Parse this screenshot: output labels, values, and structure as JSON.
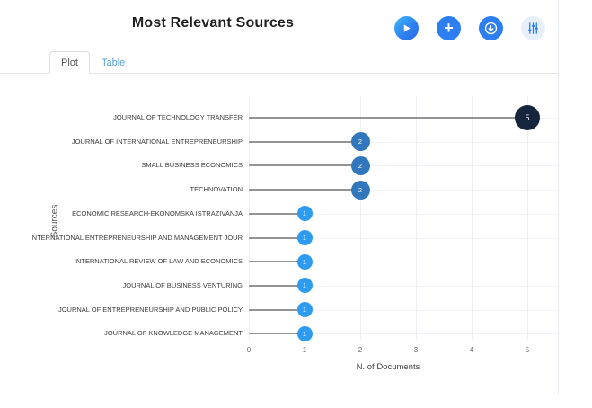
{
  "header": {
    "title": "Most Relevant Sources",
    "icons": {
      "run": "play-icon",
      "add": "plus-icon",
      "export": "download-icon",
      "filters": "sliders-icon"
    }
  },
  "colors": {
    "accent_blue": "#2d7ef0",
    "light_button_bg": "#e7effc",
    "tab_link_blue": "#57a0dc",
    "stem_gray": "#949494"
  },
  "tabs": [
    {
      "label": "Plot",
      "active": true
    },
    {
      "label": "Table",
      "active": false
    }
  ],
  "chart_data": {
    "type": "bar",
    "style": "lollipop",
    "orientation": "horizontal",
    "title": "Most Relevant Sources",
    "categories": [
      "JOURNAL OF TECHNOLOGY TRANSFER",
      "JOURNAL OF INTERNATIONAL ENTREPRENEURSHIP",
      "SMALL BUSINESS ECONOMICS",
      "TECHNOVATION",
      "ECONOMIC RESEARCH-EKONOMSKA ISTRAZIVANJA",
      "INTERNATIONAL ENTREPRENEURSHIP AND MANAGEMENT JOUR",
      "INTERNATIONAL REVIEW OF LAW AND ECONOMICS",
      "JOURNAL OF BUSINESS VENTURING",
      "JOURNAL OF ENTREPRENEURSHIP AND PUBLIC POLICY",
      "JOURNAL OF KNOWLEDGE MANAGEMENT"
    ],
    "values": [
      5,
      2,
      2,
      2,
      1,
      1,
      1,
      1,
      1,
      1
    ],
    "xlabel": "N. of Documents",
    "ylabel": "Sources",
    "xlim": [
      0,
      5
    ],
    "xticks": [
      0,
      1,
      2,
      3,
      4,
      5
    ],
    "grid": true,
    "legend": false,
    "point_colors": {
      "1": "#2d9cee",
      "2": "#3277bc",
      "5": "#16243e"
    }
  }
}
